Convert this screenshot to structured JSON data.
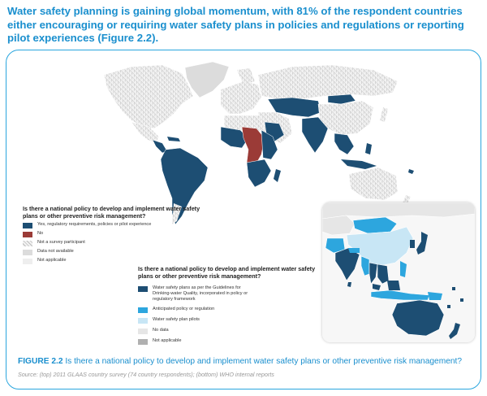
{
  "headline": "Water safety planning is gaining global momentum, with 81% of the respondent countries either encouraging or requiring water safety plans in policies and regulations or reporting pilot experiences (Figure 2.2).",
  "colors": {
    "accent": "#1a8fce",
    "frame": "#2aa6de",
    "yes": "#1d4e73",
    "no": "#9b3b37",
    "not_participant": "#e4e4e4",
    "data_not_available": "#dcdcdc",
    "not_applicable": "#eeeeee",
    "inset_policy": "#1d4e73",
    "inset_anticipated": "#2da6de",
    "inset_pilots": "#c8e6f5",
    "inset_nodata": "#e6e6e6",
    "inset_na": "#b0b0b0"
  },
  "legend_top": {
    "question": "Is there a national policy to develop and implement water safety plans or other preventive risk management?",
    "items": [
      {
        "label": "Yes, regulatory requirements, policies or pilot experience",
        "swatch": "yes"
      },
      {
        "label": "No",
        "swatch": "no"
      },
      {
        "label": "Not a survey participant",
        "swatch": "hatched"
      },
      {
        "label": "Data not available",
        "swatch": "grey"
      },
      {
        "label": "Not applicable",
        "swatch": "light"
      }
    ]
  },
  "legend_bottom": {
    "question": "Is there a national policy to develop and implement water safety plans or other preventive risk management?",
    "items": [
      {
        "label": "Water safety plans as per the Guidelines for Drinking-water Quality, incorporated in policy or regulatory framework",
        "swatch": "policy"
      },
      {
        "label": "Anticipated policy or regulation",
        "swatch": "anticipated"
      },
      {
        "label": "Water safety plan pilots",
        "swatch": "pilots"
      },
      {
        "label": "No data",
        "swatch": "nodata"
      },
      {
        "label": "Not applicable",
        "swatch": "na"
      }
    ]
  },
  "caption": {
    "figure_label": "FIGURE 2.2",
    "text": " Is there a national policy to develop and implement water safety plans or other preventive risk management?"
  },
  "source": "Source: (top) 2011 GLAAS country survey (74 country respondents); (bottom) WHO internal reports"
}
